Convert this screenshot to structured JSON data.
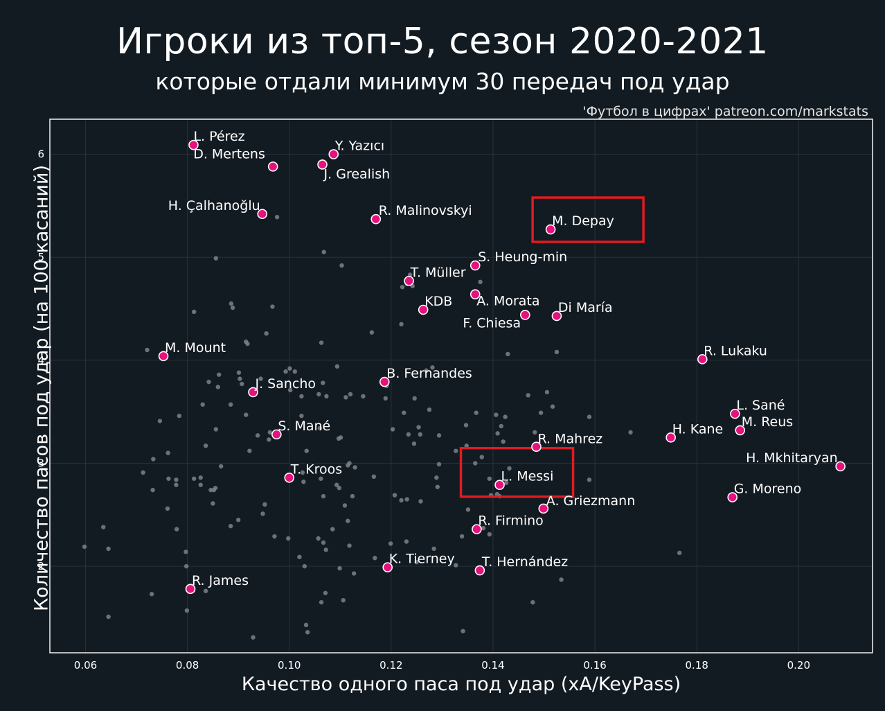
{
  "chart_data": {
    "type": "scatter",
    "title": "Игроки из топ-5, сезон 2020-2021",
    "subtitle": "которые отдали минимум 30 передач под удар",
    "source": "'Футбол в цифрах' patreon.com/markstats",
    "xlabel": "Качество одного паса под удар (xA/KeyPass)",
    "ylabel": "Количество пасов под удар (на 100 касаний)",
    "xlim": [
      0.053,
      0.2145
    ],
    "ylim": [
      1.16,
      6.34
    ],
    "xticks": [
      0.06,
      0.08,
      0.1,
      0.12,
      0.14,
      0.16,
      0.18,
      0.2
    ],
    "xtick_labels": [
      "0.06",
      "0.08",
      "0.10",
      "0.12",
      "0.14",
      "0.16",
      "0.18",
      "0.20"
    ],
    "yticks": [
      2,
      3,
      4,
      5,
      6
    ],
    "ytick_labels": [
      "2",
      "3",
      "4",
      "5",
      "6"
    ],
    "grid": true,
    "highlight_color": "#e5127d",
    "box_color": "#e01b22",
    "labeled_points": [
      {
        "name": "L. Pérez",
        "x": 0.0812,
        "y": 6.09
      },
      {
        "name": "D. Mertens",
        "x": 0.0968,
        "y": 5.88
      },
      {
        "name": "Y. Yazıcı",
        "x": 0.1087,
        "y": 6.0
      },
      {
        "name": "J. Grealish",
        "x": 0.1065,
        "y": 5.9
      },
      {
        "name": "H. Çalhanoğlu",
        "x": 0.0947,
        "y": 5.42
      },
      {
        "name": "R. Malinovskyi",
        "x": 0.117,
        "y": 5.37
      },
      {
        "name": "M. Depay",
        "x": 0.1513,
        "y": 5.27
      },
      {
        "name": "S. Heung-min",
        "x": 0.1365,
        "y": 4.92
      },
      {
        "name": "T. Müller",
        "x": 0.1235,
        "y": 4.77
      },
      {
        "name": "A. Morata",
        "x": 0.1365,
        "y": 4.64
      },
      {
        "name": "KDB",
        "x": 0.1263,
        "y": 4.49
      },
      {
        "name": "F. Chiesa",
        "x": 0.1463,
        "y": 4.44
      },
      {
        "name": "Di María",
        "x": 0.1525,
        "y": 4.43
      },
      {
        "name": "M. Mount",
        "x": 0.0753,
        "y": 4.04
      },
      {
        "name": "R. Lukaku",
        "x": 0.1811,
        "y": 4.01
      },
      {
        "name": "B. Fernandes",
        "x": 0.1187,
        "y": 3.79
      },
      {
        "name": "J. Sancho",
        "x": 0.0929,
        "y": 3.69
      },
      {
        "name": "L. Sané",
        "x": 0.1875,
        "y": 3.48
      },
      {
        "name": "M. Reus",
        "x": 0.1885,
        "y": 3.32
      },
      {
        "name": "S. Mané",
        "x": 0.0975,
        "y": 3.28
      },
      {
        "name": "H. Kane",
        "x": 0.1749,
        "y": 3.25
      },
      {
        "name": "R. Mahrez",
        "x": 0.1485,
        "y": 3.16
      },
      {
        "name": "H. Mkhitaryan",
        "x": 0.2082,
        "y": 2.97
      },
      {
        "name": "T. Kroos",
        "x": 0.1,
        "y": 2.86
      },
      {
        "name": "L. Messi",
        "x": 0.1413,
        "y": 2.79
      },
      {
        "name": "G. Moreno",
        "x": 0.187,
        "y": 2.67
      },
      {
        "name": "A. Griezmann",
        "x": 0.1499,
        "y": 2.56
      },
      {
        "name": "R. Firmino",
        "x": 0.1368,
        "y": 2.36
      },
      {
        "name": "K. Tierney",
        "x": 0.1193,
        "y": 1.99
      },
      {
        "name": "T. Hernández",
        "x": 0.1374,
        "y": 1.96
      },
      {
        "name": "R. James",
        "x": 0.0806,
        "y": 1.78
      }
    ],
    "highlighted_players": [
      "M. Depay",
      "L. Messi"
    ],
    "background_points": [
      [
        0.0598,
        2.19
      ],
      [
        0.0635,
        2.38
      ],
      [
        0.0645,
        2.17
      ],
      [
        0.0645,
        1.51
      ],
      [
        0.0713,
        2.91
      ],
      [
        0.0721,
        4.1
      ],
      [
        0.073,
        1.73
      ],
      [
        0.0732,
        2.74
      ],
      [
        0.0733,
        3.04
      ],
      [
        0.0746,
        3.41
      ],
      [
        0.0761,
        2.56
      ],
      [
        0.0762,
        3.1
      ],
      [
        0.0763,
        2.85
      ],
      [
        0.0778,
        2.84
      ],
      [
        0.0778,
        2.79
      ],
      [
        0.0779,
        2.36
      ],
      [
        0.0784,
        3.46
      ],
      [
        0.0797,
        2.14
      ],
      [
        0.0798,
        2.0
      ],
      [
        0.0799,
        1.57
      ],
      [
        0.0813,
        2.85
      ],
      [
        0.0813,
        4.47
      ],
      [
        0.0826,
        2.86
      ],
      [
        0.0826,
        2.79
      ],
      [
        0.083,
        3.57
      ],
      [
        0.0836,
        3.17
      ],
      [
        0.0836,
        1.76
      ],
      [
        0.0842,
        3.79
      ],
      [
        0.0846,
        2.74
      ],
      [
        0.085,
        2.61
      ],
      [
        0.0852,
        2.74
      ],
      [
        0.0855,
        2.76
      ],
      [
        0.0856,
        3.33
      ],
      [
        0.0856,
        4.99
      ],
      [
        0.086,
        3.74
      ],
      [
        0.0862,
        3.86
      ],
      [
        0.0866,
        2.97
      ],
      [
        0.0885,
        2.39
      ],
      [
        0.0885,
        3.57
      ],
      [
        0.0886,
        4.55
      ],
      [
        0.0889,
        4.51
      ],
      [
        0.09,
        2.45
      ],
      [
        0.0901,
        3.88
      ],
      [
        0.0903,
        3.82
      ],
      [
        0.0907,
        3.77
      ],
      [
        0.0915,
        4.18
      ],
      [
        0.0915,
        3.47
      ],
      [
        0.0918,
        4.16
      ],
      [
        0.0922,
        3.12
      ],
      [
        0.0929,
        1.31
      ],
      [
        0.0938,
        3.27
      ],
      [
        0.0944,
        3.82
      ],
      [
        0.0948,
        2.51
      ],
      [
        0.0952,
        2.6
      ],
      [
        0.0955,
        4.26
      ],
      [
        0.096,
        3.23
      ],
      [
        0.0962,
        3.3
      ],
      [
        0.0967,
        4.52
      ],
      [
        0.0971,
        2.29
      ],
      [
        0.0976,
        5.39
      ],
      [
        0.0993,
        3.89
      ],
      [
        0.0998,
        2.27
      ],
      [
        0.1001,
        3.92
      ],
      [
        0.1002,
        3.71
      ],
      [
        0.1011,
        3.89
      ],
      [
        0.102,
        2.09
      ],
      [
        0.1024,
        3.65
      ],
      [
        0.1024,
        3.46
      ],
      [
        0.1026,
        2.91
      ],
      [
        0.1028,
        2.82
      ],
      [
        0.103,
        2.0
      ],
      [
        0.1033,
        1.43
      ],
      [
        0.1034,
        3.12
      ],
      [
        0.1036,
        1.36
      ],
      [
        0.1057,
        2.27
      ],
      [
        0.1058,
        3.67
      ],
      [
        0.106,
        3.34
      ],
      [
        0.1062,
        2.85
      ],
      [
        0.1063,
        4.17
      ],
      [
        0.1063,
        1.65
      ],
      [
        0.1066,
        3.78
      ],
      [
        0.1067,
        2.23
      ],
      [
        0.1067,
        2.68
      ],
      [
        0.1068,
        5.05
      ],
      [
        0.1071,
        1.74
      ],
      [
        0.1072,
        2.16
      ],
      [
        0.1073,
        3.65
      ],
      [
        0.1085,
        2.36
      ],
      [
        0.1093,
        2.79
      ],
      [
        0.1094,
        3.94
      ],
      [
        0.1097,
        3.24
      ],
      [
        0.1098,
        2.76
      ],
      [
        0.1099,
        1.98
      ],
      [
        0.1101,
        3.25
      ],
      [
        0.1103,
        4.92
      ],
      [
        0.1106,
        1.67
      ],
      [
        0.1109,
        2.59
      ],
      [
        0.1111,
        3.64
      ],
      [
        0.1115,
        2.44
      ],
      [
        0.1115,
        2.98
      ],
      [
        0.1118,
        3.0
      ],
      [
        0.1118,
        2.2
      ],
      [
        0.112,
        3.67
      ],
      [
        0.1124,
        2.68
      ],
      [
        0.1127,
        1.93
      ],
      [
        0.1129,
        2.96
      ],
      [
        0.1145,
        3.65
      ],
      [
        0.1162,
        4.27
      ],
      [
        0.1166,
        2.87
      ],
      [
        0.1168,
        2.08
      ],
      [
        0.1189,
        3.63
      ],
      [
        0.1191,
        3.75
      ],
      [
        0.1199,
        2.22
      ],
      [
        0.1203,
        3.33
      ],
      [
        0.1207,
        2.69
      ],
      [
        0.122,
        4.35
      ],
      [
        0.122,
        2.64
      ],
      [
        0.1222,
        4.71
      ],
      [
        0.1225,
        3.49
      ],
      [
        0.123,
        2.24
      ],
      [
        0.1231,
        2.65
      ],
      [
        0.1231,
        4.74
      ],
      [
        0.1234,
        3.28
      ],
      [
        0.1237,
        4.83
      ],
      [
        0.1242,
        4.72
      ],
      [
        0.1245,
        3.19
      ],
      [
        0.1246,
        3.63
      ],
      [
        0.125,
        2.04
      ],
      [
        0.1254,
        3.35
      ],
      [
        0.1257,
        3.28
      ],
      [
        0.1258,
        2.63
      ],
      [
        0.1269,
        3.9
      ],
      [
        0.1275,
        3.52
      ],
      [
        0.1281,
        3.93
      ],
      [
        0.1284,
        2.17
      ],
      [
        0.1289,
        2.86
      ],
      [
        0.1291,
        2.77
      ],
      [
        0.1294,
        3.27
      ],
      [
        0.1294,
        2.99
      ],
      [
        0.1327,
        3.12
      ],
      [
        0.1327,
        2.01
      ],
      [
        0.1339,
        2.29
      ],
      [
        0.1341,
        1.37
      ],
      [
        0.1347,
        3.37
      ],
      [
        0.1348,
        3.17
      ],
      [
        0.1351,
        2.55
      ],
      [
        0.1365,
        3.0
      ],
      [
        0.1367,
        3.49
      ],
      [
        0.1375,
        4.76
      ],
      [
        0.1378,
        3.06
      ],
      [
        0.1381,
        2.37
      ],
      [
        0.1393,
        2.85
      ],
      [
        0.1393,
        2.31
      ],
      [
        0.1396,
        2.69
      ],
      [
        0.1406,
        3.47
      ],
      [
        0.1409,
        3.29
      ],
      [
        0.1408,
        2.7
      ],
      [
        0.1413,
        2.68
      ],
      [
        0.1416,
        3.36
      ],
      [
        0.142,
        3.21
      ],
      [
        0.1424,
        3.45
      ],
      [
        0.1426,
        2.81
      ],
      [
        0.1429,
        4.06
      ],
      [
        0.1432,
        2.95
      ],
      [
        0.1469,
        3.66
      ],
      [
        0.1478,
        1.65
      ],
      [
        0.1482,
        3.3
      ],
      [
        0.1494,
        3.49
      ],
      [
        0.1506,
        3.69
      ],
      [
        0.1517,
        3.55
      ],
      [
        0.1525,
        4.08
      ],
      [
        0.1534,
        1.87
      ],
      [
        0.1589,
        3.45
      ],
      [
        0.1589,
        2.84
      ],
      [
        0.167,
        3.3
      ],
      [
        0.1766,
        2.13
      ]
    ]
  }
}
